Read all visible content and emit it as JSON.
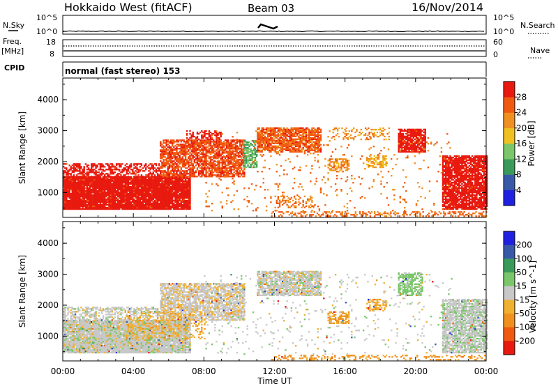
{
  "header": {
    "title": "Hokkaido West (fitACF)",
    "beam": "Beam 03",
    "date": "16/Nov/2014"
  },
  "top_panels": {
    "nsky_label": "N.Sky",
    "nsky_ticks": [
      "10^5",
      "10^0"
    ],
    "nsearch_label": "N.Search",
    "nsearch_ticks": [
      "10^5",
      "10^0"
    ],
    "freq_label": "Freq.",
    "freq_unit": "[MHz]",
    "freq_ticks": [
      "18",
      "8"
    ],
    "nave_label": "Nave",
    "nave_ticks": [
      "60",
      "0"
    ],
    "cpid_label": "CPID",
    "cpid_text": "normal (fast stereo) 153"
  },
  "colors": {
    "power": [
      "#2020e0",
      "#3858a8",
      "#3a9a5a",
      "#7ac66a",
      "#f0c020",
      "#f09020",
      "#f05a10",
      "#e81a10"
    ],
    "velocity": [
      "#e81a10",
      "#f05a10",
      "#f09020",
      "#f0b030",
      "#c8c8c8",
      "#7ac66a",
      "#3a9a5a",
      "#3858a8",
      "#2020e0"
    ]
  },
  "chart_data": [
    {
      "type": "heatmap",
      "panel": "power",
      "x_ticks": [
        "00:00",
        "04:00",
        "08:00",
        "12:00",
        "16:00",
        "20:00",
        "00:00"
      ],
      "ylabel": "Slant Range [km]",
      "y_ticks": [
        "1000",
        "2000",
        "3000",
        "4000"
      ],
      "ylim": [
        200,
        4700
      ],
      "colorbar": {
        "label": "Power [dB]",
        "ticks": [
          "28",
          "24",
          "20",
          "16",
          "12",
          "8",
          "4"
        ],
        "range": [
          0,
          32
        ]
      },
      "regions": [
        {
          "t0": 0.0,
          "t1": 7.2,
          "r0": 450,
          "r1": 1500,
          "power": 29,
          "density": 0.96
        },
        {
          "t0": 0.0,
          "t1": 5.5,
          "r0": 1500,
          "r1": 1950,
          "power": 28,
          "density": 0.55
        },
        {
          "t0": 5.5,
          "t1": 10.3,
          "r0": 1500,
          "r1": 2700,
          "power": 27,
          "density": 0.75
        },
        {
          "t0": 7.0,
          "t1": 9.0,
          "r0": 2700,
          "r1": 3000,
          "power": 28,
          "density": 0.5
        },
        {
          "t0": 10.2,
          "t1": 11.0,
          "r0": 1800,
          "r1": 2700,
          "power": 12,
          "density": 0.6
        },
        {
          "t0": 11.0,
          "t1": 14.6,
          "r0": 2300,
          "r1": 3100,
          "power": 26,
          "density": 0.8
        },
        {
          "t0": 12.0,
          "t1": 14.2,
          "r0": 500,
          "r1": 900,
          "power": 24,
          "density": 0.35
        },
        {
          "t0": 15.0,
          "t1": 16.2,
          "r0": 1700,
          "r1": 2100,
          "power": 22,
          "density": 0.6
        },
        {
          "t0": 17.2,
          "t1": 18.3,
          "r0": 1800,
          "r1": 2200,
          "power": 20,
          "density": 0.55
        },
        {
          "t0": 15.2,
          "t1": 18.5,
          "r0": 2700,
          "r1": 3100,
          "power": 22,
          "density": 0.25
        },
        {
          "t0": 19.0,
          "t1": 20.5,
          "r0": 2300,
          "r1": 3050,
          "power": 29,
          "density": 0.85
        },
        {
          "t0": 21.5,
          "t1": 24.0,
          "r0": 450,
          "r1": 2200,
          "power": 29,
          "density": 0.85
        },
        {
          "t0": 11.8,
          "t1": 24.0,
          "r0": 220,
          "r1": 400,
          "power": 25,
          "density": 0.4
        },
        {
          "t0": 8.0,
          "t1": 22.0,
          "r0": 400,
          "r1": 3000,
          "power": 24,
          "density": 0.04
        }
      ]
    },
    {
      "type": "heatmap",
      "panel": "velocity",
      "x_ticks": [
        "00:00",
        "04:00",
        "08:00",
        "12:00",
        "16:00",
        "20:00",
        "00:00"
      ],
      "xlabel": "Time UT",
      "ylabel": "Slant Range [km]",
      "y_ticks": [
        "1000",
        "2000",
        "3000",
        "4000"
      ],
      "ylim": [
        200,
        4700
      ],
      "colorbar": {
        "label": "Velocity [m s^-1]",
        "ticks": [
          "200",
          "100",
          "50",
          "15",
          "-15",
          "-50",
          "-100",
          "-200"
        ],
        "range": [
          -250,
          250
        ]
      },
      "regions": [
        {
          "t0": 0.0,
          "t1": 7.2,
          "r0": 450,
          "r1": 1500,
          "velocity": 0,
          "density": 0.96
        },
        {
          "t0": 0.0,
          "t1": 5.5,
          "r0": 1500,
          "r1": 1950,
          "velocity": 0,
          "density": 0.5
        },
        {
          "t0": 5.5,
          "t1": 10.3,
          "r0": 1500,
          "r1": 2700,
          "velocity": -5,
          "density": 0.75
        },
        {
          "t0": 3.5,
          "t1": 8.0,
          "r0": 900,
          "r1": 1800,
          "velocity": -40,
          "density": 0.25
        },
        {
          "t0": 11.0,
          "t1": 14.6,
          "r0": 2300,
          "r1": 3100,
          "velocity": 0,
          "density": 0.8
        },
        {
          "t0": 15.0,
          "t1": 16.2,
          "r0": 1400,
          "r1": 1800,
          "velocity": -60,
          "density": 0.6
        },
        {
          "t0": 17.2,
          "t1": 18.3,
          "r0": 1800,
          "r1": 2200,
          "velocity": -40,
          "density": 0.5
        },
        {
          "t0": 19.0,
          "t1": 20.4,
          "r0": 2300,
          "r1": 3050,
          "velocity": 30,
          "density": 0.7
        },
        {
          "t0": 21.5,
          "t1": 24.0,
          "r0": 450,
          "r1": 2200,
          "velocity": 5,
          "density": 0.8
        },
        {
          "t0": 11.8,
          "t1": 24.0,
          "r0": 220,
          "r1": 400,
          "velocity": -60,
          "density": 0.3
        },
        {
          "t0": 8.0,
          "t1": 22.0,
          "r0": 400,
          "r1": 3000,
          "velocity": 0,
          "density": 0.04
        }
      ]
    }
  ]
}
